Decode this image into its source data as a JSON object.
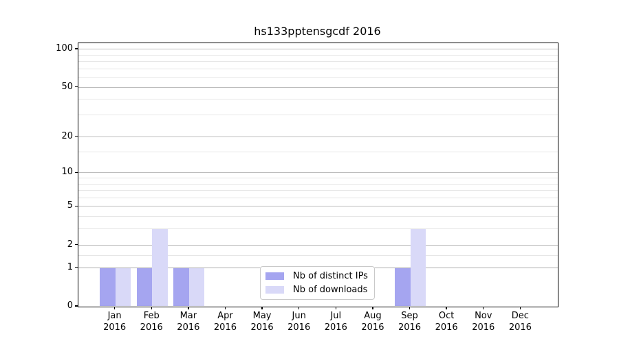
{
  "chart_data": {
    "type": "bar",
    "title": "hs133pptensgcdf 2016",
    "categories": [
      "Jan 2016",
      "Feb 2016",
      "Mar 2016",
      "Apr 2016",
      "May 2016",
      "Jun 2016",
      "Jul 2016",
      "Aug 2016",
      "Sep 2016",
      "Oct 2016",
      "Nov 2016",
      "Dec 2016"
    ],
    "series": [
      {
        "name": "Nb of distinct IPs",
        "color": "#a5a5f0",
        "values": [
          1,
          1,
          1,
          0,
          0,
          0,
          0,
          0,
          1,
          0,
          0,
          0
        ]
      },
      {
        "name": "Nb of downloads",
        "color": "#d9d9f8",
        "values": [
          1,
          3,
          1,
          0,
          0,
          0,
          0,
          0,
          3,
          0,
          0,
          0
        ]
      }
    ],
    "yscale": "log1p",
    "ylim": [
      0,
      112
    ],
    "yticks_major": [
      0,
      1,
      2,
      5,
      10,
      20,
      50,
      100
    ],
    "yticks_minor": [
      1.5,
      3,
      4,
      6,
      7,
      8,
      9,
      15,
      30,
      40,
      60,
      70,
      80,
      90
    ],
    "grid": "horizontal",
    "legend_position": "lower center"
  },
  "colors": {
    "bar_ips": "#a5a5f0",
    "bar_downloads": "#d9d9f8",
    "grid_major": "#bdbdbd",
    "grid_minor": "#e6e6e6",
    "axis_frame": "#000000",
    "legend_border": "#c9c9c9",
    "background": "#ffffff"
  }
}
